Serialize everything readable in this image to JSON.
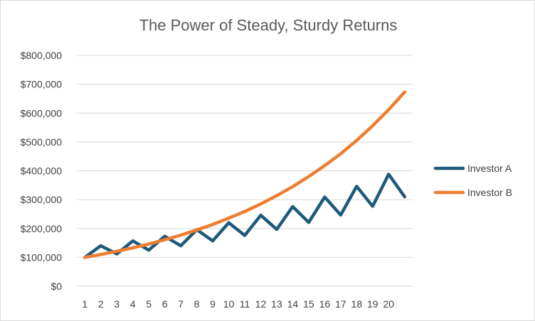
{
  "chart_data": {
    "type": "line",
    "title": "The Power of Steady, Sturdy Returns",
    "xlabel": "",
    "ylabel": "",
    "categories": [
      "1",
      "2",
      "3",
      "4",
      "5",
      "6",
      "7",
      "8",
      "9",
      "10",
      "11",
      "12",
      "13",
      "14",
      "15",
      "16",
      "17",
      "18",
      "19",
      "20",
      ""
    ],
    "ylim": [
      0,
      800000
    ],
    "y_ticks": [
      0,
      100000,
      200000,
      300000,
      400000,
      500000,
      600000,
      700000,
      800000
    ],
    "y_tick_labels": [
      "$0",
      "$100,000",
      "$200,000",
      "$300,000",
      "$400,000",
      "$500,000",
      "$600,000",
      "$700,000",
      "$800,000"
    ],
    "grid": true,
    "legend_position": "right",
    "series": [
      {
        "name": "Investor A",
        "color": "#1f5a7a",
        "values": [
          100000,
          140000,
          112000,
          157000,
          125000,
          173000,
          140000,
          196000,
          157000,
          220000,
          176000,
          246000,
          197000,
          276000,
          221000,
          309000,
          247000,
          346000,
          277000,
          388000,
          310000
        ]
      },
      {
        "name": "Investor B",
        "color": "#ed7d31",
        "values": [
          100000,
          110000,
          121000,
          133000,
          146000,
          161000,
          177000,
          195000,
          214000,
          236000,
          259000,
          285000,
          314000,
          345000,
          380000,
          418000,
          459000,
          505000,
          556000,
          612000,
          673000
        ]
      }
    ]
  }
}
